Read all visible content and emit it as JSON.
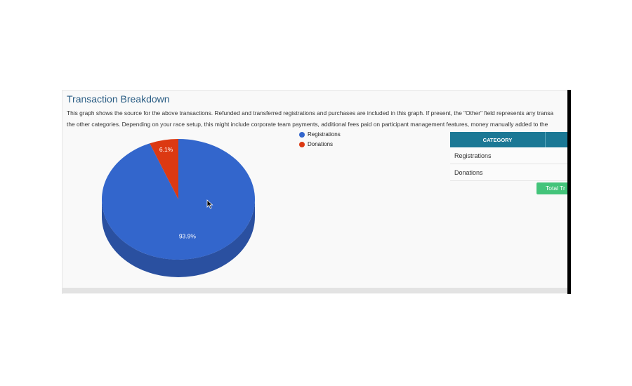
{
  "section": {
    "title": "Transaction Breakdown",
    "description_line1": "This graph shows the source for the above transactions. Refunded and transferred registrations and purchases are included in this graph. If present, the \"Other\" field represents any transa",
    "description_line2": "the other categories. Depending on your race setup, this might include corporate team payments, additional fees paid on participant management features, money manually added to the"
  },
  "colors": {
    "registrations": "#3366cc",
    "registrations_side": "#2a50a0",
    "donations": "#dc3912",
    "donations_side": "#a82b0e",
    "table_header": "#1b7895",
    "total_button": "#43c47a"
  },
  "chart_data": {
    "type": "pie",
    "title": "",
    "style": "3d",
    "legend_position": "right",
    "slices": [
      {
        "name": "Registrations",
        "value": 93.9,
        "label": "93.9%",
        "color": "#3366cc"
      },
      {
        "name": "Donations",
        "value": 6.1,
        "label": "6.1%",
        "color": "#dc3912"
      }
    ]
  },
  "table": {
    "header": "CATEGORY",
    "rows": [
      "Registrations",
      "Donations"
    ]
  },
  "total_button_label": "Total Tr"
}
